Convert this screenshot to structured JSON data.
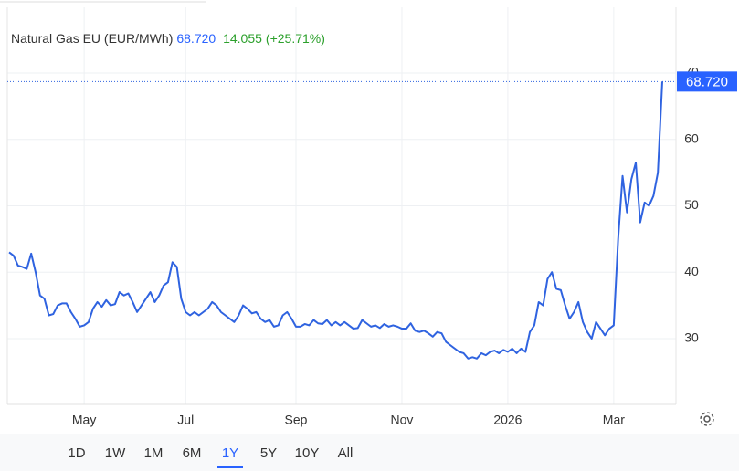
{
  "chart_data": {
    "type": "line",
    "title": "Natural Gas EU (EUR/MWh)",
    "price": "68.720",
    "change": "14.055",
    "change_pct": "(+25.71%)",
    "series": [
      {
        "name": "Natural Gas EU",
        "color": "#2f63e0",
        "values": [
          43,
          42.5,
          41,
          40.8,
          40.5,
          42.8,
          40,
          36.5,
          36,
          33.5,
          33.7,
          35,
          35.3,
          35.3,
          34,
          33,
          31.8,
          32,
          32.5,
          34.5,
          35.5,
          34.8,
          35.8,
          35,
          35.2,
          37,
          36.5,
          36.8,
          35.5,
          34,
          35,
          36,
          37,
          35.5,
          36.5,
          38,
          38.5,
          41.5,
          40.8,
          36,
          34,
          33.5,
          34,
          33.5,
          34,
          34.5,
          35.5,
          35,
          34,
          33.5,
          33,
          32.5,
          33.5,
          35,
          34.5,
          33.8,
          34,
          33,
          32.5,
          32.8,
          31.8,
          32,
          33.5,
          34,
          33,
          31.8,
          31.8,
          32.2,
          32,
          32.8,
          32.3,
          32.2,
          32.8,
          32,
          32.5,
          32,
          32.5,
          32,
          31.5,
          31.6,
          32.8,
          32.3,
          31.8,
          32,
          31.6,
          32.2,
          31.8,
          32,
          31.8,
          31.5,
          31.5,
          32.3,
          31.2,
          31,
          31.2,
          30.8,
          30.3,
          31,
          30.8,
          29.5,
          29,
          28.5,
          28,
          27.8,
          27,
          27.2,
          27,
          27.8,
          27.5,
          28,
          28.2,
          27.8,
          28.3,
          28,
          28.5,
          27.8,
          28.5,
          28,
          31,
          32,
          35.5,
          35,
          39,
          40,
          37.5,
          37.3,
          35,
          33,
          34,
          35.5,
          32.5,
          31,
          30,
          32.5,
          31.5,
          30.5,
          31.5,
          32,
          45,
          54.5,
          49,
          54,
          56.5,
          47.5,
          50.5,
          50,
          51.5,
          55,
          68.72
        ]
      }
    ],
    "xlim": [
      0,
      148
    ],
    "xticks": [
      {
        "value": 17,
        "label": "May"
      },
      {
        "value": 40,
        "label": "Jul"
      },
      {
        "value": 65,
        "label": "Sep"
      },
      {
        "value": 89,
        "label": "Nov"
      },
      {
        "value": 113,
        "label": "2026"
      },
      {
        "value": 137,
        "label": "Mar"
      }
    ],
    "ylim": [
      20,
      80
    ],
    "yticks": [
      30,
      40,
      50,
      60,
      70
    ],
    "grid": true,
    "ranges": [
      "1D",
      "1W",
      "1M",
      "6M",
      "1Y",
      "5Y",
      "10Y",
      "All"
    ]
  }
}
